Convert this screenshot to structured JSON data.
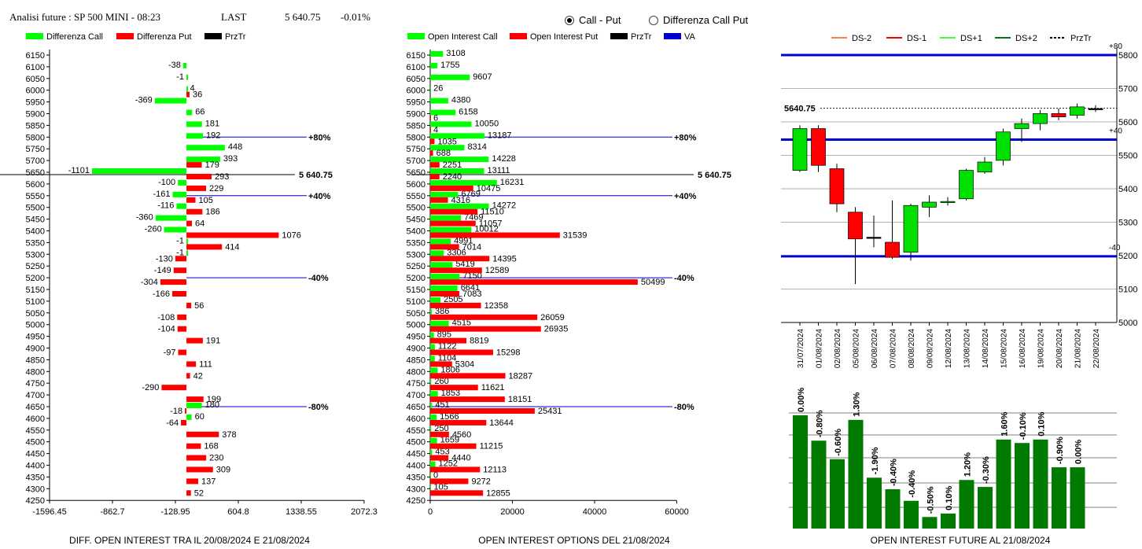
{
  "header": {
    "title": "Analisi future : SP 500 MINI - 08:23",
    "last_label": "LAST",
    "last_value": "5 640.75",
    "change": "-0.01%"
  },
  "toggle": {
    "options": [
      {
        "label": "Call - Put",
        "selected": true
      },
      {
        "label": "Differenza Call Put",
        "selected": false
      }
    ]
  },
  "colors": {
    "call": "#00ff00",
    "put": "#ff0000",
    "blue": "#0000cc",
    "prztr": "#000000",
    "dark_green": "#007a00"
  },
  "strikes": [
    6150,
    6100,
    6050,
    6000,
    5950,
    5900,
    5850,
    5800,
    5750,
    5700,
    5650,
    5600,
    5550,
    5500,
    5450,
    5400,
    5350,
    5300,
    5250,
    5200,
    5150,
    5100,
    5050,
    5000,
    4950,
    4900,
    4850,
    4800,
    4750,
    4700,
    4650,
    4600,
    4550,
    4500,
    4450,
    4400,
    4350,
    4300,
    4250
  ],
  "diff_chart": {
    "caption": "DIFF. OPEN INTEREST TRA IL 20/08/2024 E 21/08/2024",
    "legend": [
      "Differenza Call",
      "Differenza Put",
      "PrzTr"
    ],
    "x_ticks": [
      "-1596.45",
      "-862.7",
      "-128.95",
      "604.8",
      "1338.55",
      "2072.3"
    ],
    "x_min": -1596.45,
    "x_max": 2072.3,
    "call": {
      "6100": -38,
      "6050": -1,
      "6000": 4,
      "5950": -369,
      "5900": 66,
      "5850": 181,
      "5800": 192,
      "5750": 448,
      "5700": 393,
      "5650": -1101,
      "5600": -100,
      "5550": -161,
      "5500": -116,
      "5450": -360,
      "5400": -260,
      "5350": -1,
      "5300": -1,
      "4650": 180,
      "4600": 60
    },
    "put": {
      "6000": 36,
      "5700": 179,
      "5650": 293,
      "5600": 229,
      "5550": 105,
      "5500": 186,
      "5450": 64,
      "5400": 1076,
      "5350": 414,
      "5300": -130,
      "5250": -149,
      "5200": -304,
      "5150": -166,
      "5100": 56,
      "5050": -108,
      "5000": -104,
      "4950": 191,
      "4900": -97,
      "4850": 111,
      "4800": 42,
      "4750": -290,
      "4700": 199,
      "4650": -18,
      "4600": -64,
      "4550": 378,
      "4500": 168,
      "4450": 230,
      "4400": 309,
      "4350": 137,
      "4300": 52
    },
    "markers": [
      {
        "strike": 5800,
        "label": "+80%"
      },
      {
        "strike": 5550,
        "label": "+40%"
      },
      {
        "strike": 5200,
        "label": "-40%"
      },
      {
        "strike": 4650,
        "label": "-80%"
      }
    ],
    "price_line": {
      "strike": 5650,
      "label": "5 640.75"
    }
  },
  "oi_chart": {
    "caption": "OPEN INTEREST OPTIONS DEL 21/08/2024",
    "legend": [
      "Open Interest Call",
      "Open Interest Put",
      "PrzTr",
      "VA"
    ],
    "x_ticks": [
      "0",
      "20000",
      "40000",
      "60000"
    ],
    "x_max": 60000,
    "call": {
      "6150": 3108,
      "6100": 1755,
      "6050": 9607,
      "6000": 26,
      "5950": 4380,
      "5900": 6158,
      "5850": 10050,
      "5800": 13187,
      "5750": 8314,
      "5700": 14228,
      "5650": 13111,
      "5600": 16231,
      "5550": 6769,
      "5500": 14272,
      "5450": 7469,
      "5400": 10012,
      "5350": 4991,
      "5300": 3306,
      "5250": 5419,
      "5200": 7150,
      "5150": 6641,
      "5100": 2505,
      "5050": 386,
      "5000": 4515,
      "4950": 895,
      "4900": 1122,
      "4850": 1104,
      "4800": 1806,
      "4750": 260,
      "4700": 1853,
      "4650": 451,
      "4600": 1566,
      "4550": 250,
      "4500": 1659,
      "4450": 453,
      "4400": 1252,
      "4350": 0,
      "4300": 105
    },
    "put": {
      "5900": 6,
      "5850": 4,
      "5800": 1035,
      "5750": 688,
      "5700": 2251,
      "5650": 2240,
      "5600": 10475,
      "5550": 4316,
      "5500": 11510,
      "5450": 11057,
      "5400": 31539,
      "5350": 7014,
      "5300": 14395,
      "5250": 12589,
      "5200": 50499,
      "5150": 7083,
      "5100": 12358,
      "5050": 26059,
      "5000": 26935,
      "4950": 8819,
      "4900": 15298,
      "4850": 5304,
      "4800": 18287,
      "4750": 11621,
      "4700": 18151,
      "4650": 25431,
      "4600": 13644,
      "4550": 4560,
      "4500": 11215,
      "4450": 4440,
      "4400": 12113,
      "4350": 9272,
      "4300": 12855
    },
    "markers": [
      {
        "strike": 5800,
        "label": "+80%"
      },
      {
        "strike": 5550,
        "label": "+40%"
      },
      {
        "strike": 5200,
        "label": "-40%"
      },
      {
        "strike": 4650,
        "label": "-80%"
      }
    ],
    "price_line": {
      "strike": 5650,
      "label": "5 640.75"
    }
  },
  "candle_chart": {
    "legend": [
      "DS-2",
      "DS-1",
      "DS+1",
      "DS+2",
      "PrzTr"
    ],
    "legend_colors": [
      "#ff8040",
      "#ff0000",
      "#40ff40",
      "#007a00",
      "#000000"
    ],
    "y_ticks": [
      5800,
      5700,
      5600,
      5500,
      5400,
      5300,
      5200,
      5100,
      5000
    ],
    "y_min": 5000,
    "y_max": 5800,
    "last_label": "5640.75",
    "last": 5640.75,
    "levels": [
      {
        "value": 5800,
        "label": "+80"
      },
      {
        "value": 5547,
        "label": "+40"
      },
      {
        "value": 5198,
        "label": "-40"
      }
    ],
    "dates": [
      "31/07/2024",
      "01/08/2024",
      "02/08/2024",
      "05/08/2024",
      "06/08/2024",
      "07/08/2024",
      "08/08/2024",
      "09/08/2024",
      "12/08/2024",
      "13/08/2024",
      "14/08/2024",
      "15/08/2024",
      "16/08/2024",
      "19/08/2024",
      "20/08/2024",
      "21/08/2024",
      "22/08/2024"
    ],
    "candles": [
      {
        "o": 5455,
        "c": 5580,
        "h": 5590,
        "l": 5450
      },
      {
        "o": 5580,
        "c": 5470,
        "h": 5590,
        "l": 5450
      },
      {
        "o": 5460,
        "c": 5355,
        "h": 5475,
        "l": 5330
      },
      {
        "o": 5330,
        "c": 5250,
        "h": 5345,
        "l": 5115
      },
      {
        "o": 5255,
        "c": 5255,
        "h": 5320,
        "l": 5225
      },
      {
        "o": 5240,
        "c": 5195,
        "h": 5365,
        "l": 5190
      },
      {
        "o": 5210,
        "c": 5350,
        "h": 5355,
        "l": 5185
      },
      {
        "o": 5345,
        "c": 5360,
        "h": 5380,
        "l": 5315
      },
      {
        "o": 5360,
        "c": 5362,
        "h": 5375,
        "l": 5350
      },
      {
        "o": 5370,
        "c": 5455,
        "h": 5460,
        "l": 5365
      },
      {
        "o": 5450,
        "c": 5480,
        "h": 5495,
        "l": 5445
      },
      {
        "o": 5485,
        "c": 5570,
        "h": 5580,
        "l": 5470
      },
      {
        "o": 5580,
        "c": 5595,
        "h": 5610,
        "l": 5540
      },
      {
        "o": 5595,
        "c": 5625,
        "h": 5635,
        "l": 5575
      },
      {
        "o": 5625,
        "c": 5615,
        "h": 5640,
        "l": 5605
      },
      {
        "o": 5620,
        "c": 5645,
        "h": 5655,
        "l": 5610
      },
      {
        "o": 5640,
        "c": 5640,
        "h": 5650,
        "l": 5630
      }
    ]
  },
  "future_oi_chart": {
    "caption": "OPEN INTEREST FUTURE AL 21/08/2024",
    "labels": [
      "0.00%",
      "-0.80%",
      "-0.60%",
      "1.30%",
      "-1.90%",
      "-0.40%",
      "-0.40%",
      "-0.50%",
      "0.10%",
      "1.20%",
      "-0.30%",
      "1.60%",
      "-0.10%",
      "0.10%",
      "-0.90%",
      "0.00%"
    ],
    "values": [
      0.98,
      0.76,
      0.6,
      0.94,
      0.44,
      0.34,
      0.24,
      0.1,
      0.13,
      0.42,
      0.36,
      0.77,
      0.74,
      0.77,
      0.53,
      0.53
    ]
  }
}
